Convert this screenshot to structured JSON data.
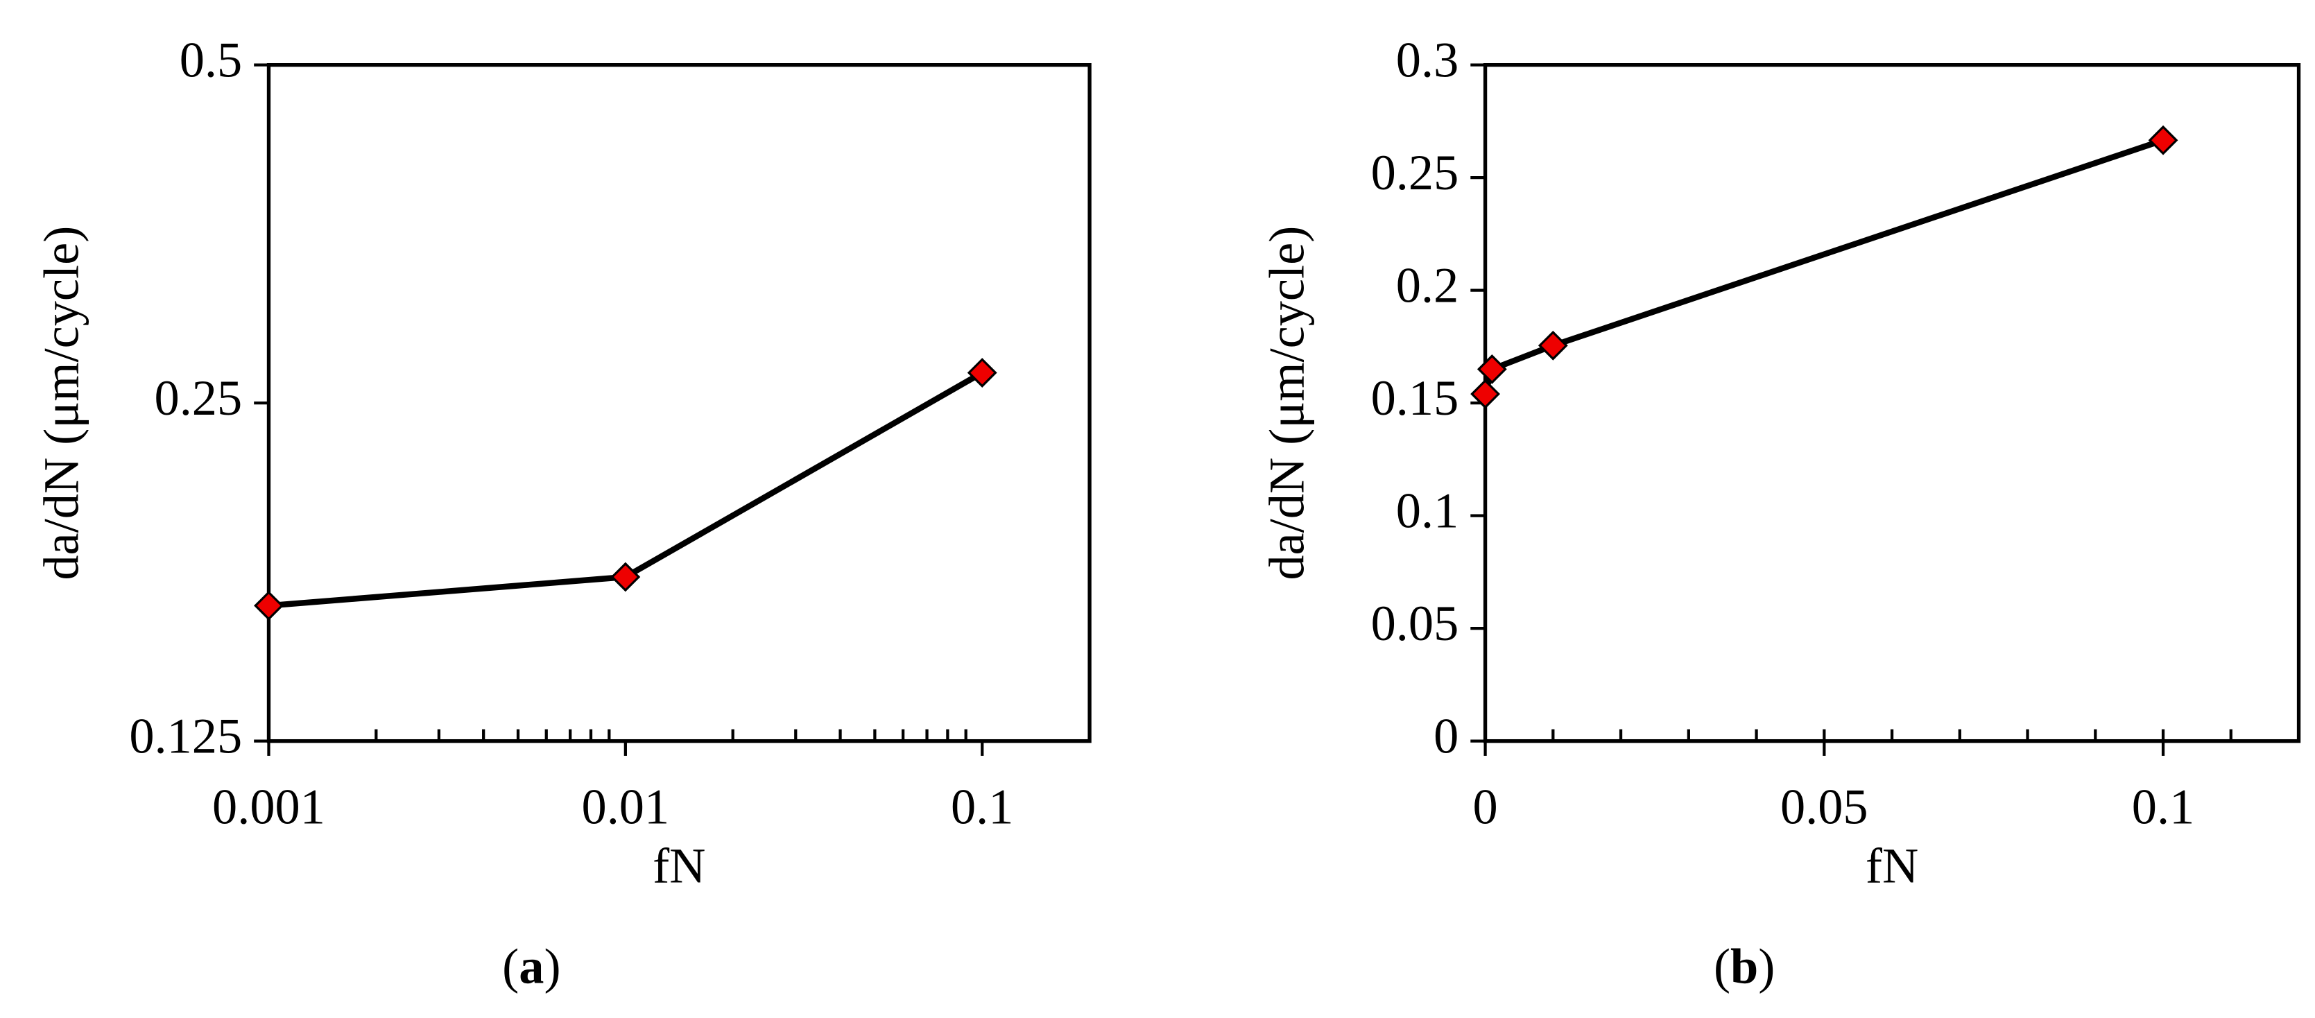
{
  "chart_data": [
    {
      "type": "line",
      "label": "(a)",
      "xlabel": "fN",
      "ylabel": "da/dN (μm/cycle)",
      "x": [
        0.001,
        0.01,
        0.1
      ],
      "values": [
        0.165,
        0.175,
        0.266
      ],
      "xlog": true,
      "ylog": true,
      "xlim": [
        0.001,
        0.2
      ],
      "xticks": [
        0.001,
        0.01,
        0.1
      ],
      "ylim": [
        0.125,
        0.5
      ],
      "yticks": [
        0.125,
        0.25,
        0.5
      ],
      "color": "#ee0000",
      "line_color": "#000000",
      "minor_ticks": true
    },
    {
      "type": "line",
      "label": "(b)",
      "xlabel": "fN",
      "ylabel": "da/dN (μm/cycle)",
      "x": [
        0,
        0.001,
        0.01,
        0.1
      ],
      "values": [
        0.154,
        0.165,
        0.1755,
        0.2666
      ],
      "xlog": false,
      "ylog": false,
      "xlim": [
        0,
        0.12
      ],
      "xticks": [
        0,
        0.05,
        0.1
      ],
      "ylim": [
        0,
        0.3
      ],
      "yticks": [
        0,
        0.05,
        0.1,
        0.15,
        0.2,
        0.25,
        0.3
      ],
      "color": "#ee0000",
      "line_color": "#000000",
      "minor_ticks": true
    }
  ]
}
